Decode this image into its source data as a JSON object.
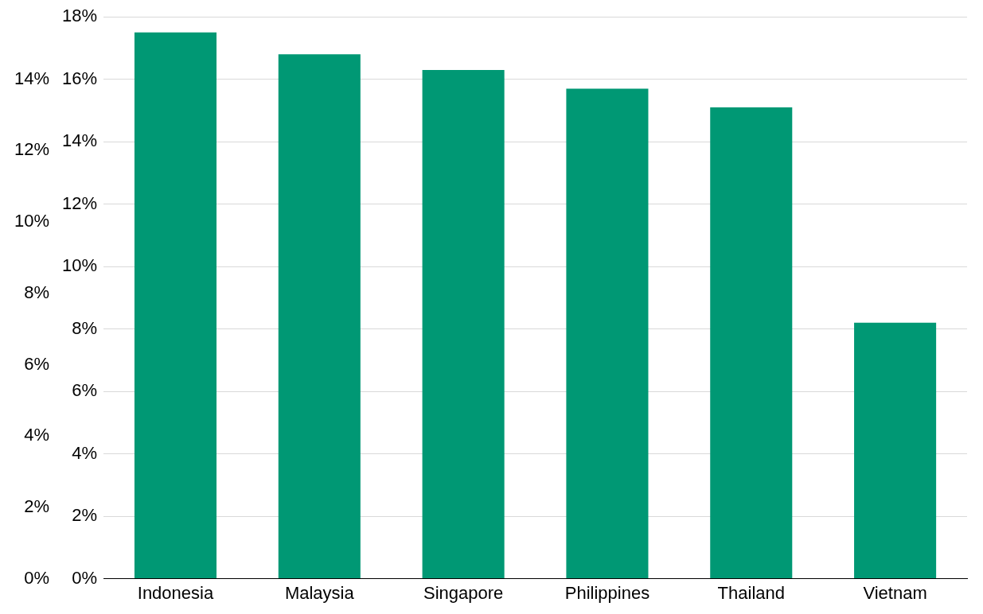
{
  "chart_data": {
    "type": "bar",
    "categories": [
      "Indonesia",
      "Malaysia",
      "Singapore",
      "Philippines",
      "Thailand",
      "Vietnam"
    ],
    "values": [
      17.5,
      16.8,
      16.3,
      15.7,
      15.1,
      8.2
    ],
    "color": "#009874",
    "ylim": [
      0,
      18
    ],
    "yticks": [
      {
        "value": 0,
        "label": "0%"
      },
      {
        "value": 2,
        "label": "2%"
      },
      {
        "value": 4,
        "label": "4%"
      },
      {
        "value": 6,
        "label": "6%"
      },
      {
        "value": 8,
        "label": "8%"
      },
      {
        "value": 10,
        "label": "10%"
      },
      {
        "value": 12,
        "label": "12%"
      },
      {
        "value": 14,
        "label": "14%"
      },
      {
        "value": 16,
        "label": "16%"
      },
      {
        "value": 18,
        "label": "18%"
      }
    ],
    "y2lim": [
      0,
      15.75
    ],
    "y2ticks": [
      {
        "value": 0,
        "label": "0%"
      },
      {
        "value": 2,
        "label": "2%"
      },
      {
        "value": 4,
        "label": "4%"
      },
      {
        "value": 6,
        "label": "6%"
      },
      {
        "value": 8,
        "label": "8%"
      },
      {
        "value": 10,
        "label": "10%"
      },
      {
        "value": 12,
        "label": "12%"
      },
      {
        "value": 14,
        "label": "14%"
      }
    ],
    "grid": "y"
  }
}
